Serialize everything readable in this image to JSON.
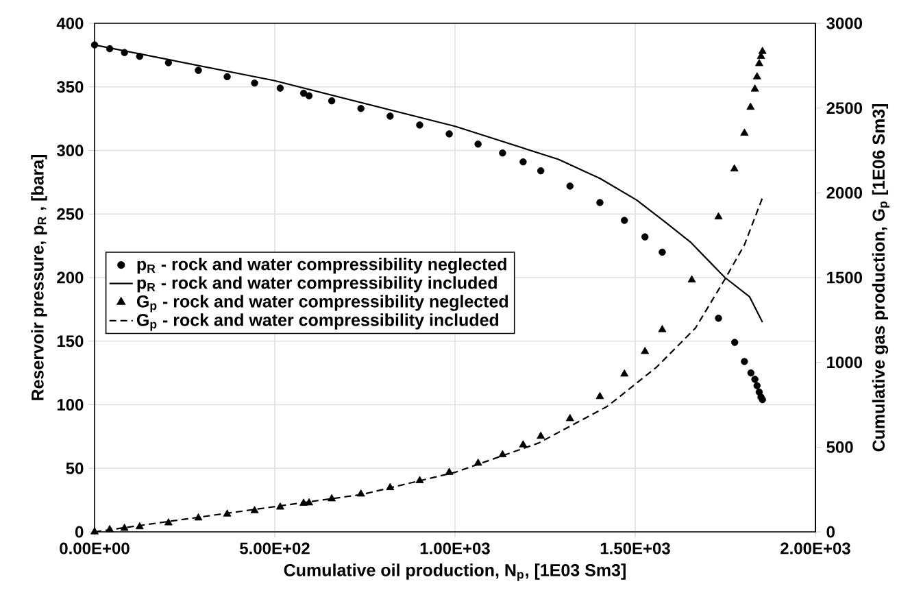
{
  "chart_data": {
    "type": "line",
    "xlabel": "Cumulative oil production, N$_{p}$, [1E03 Sm3]",
    "ylabel": "Reservoir pressure, p$_{R}$ , [bara]",
    "y2label": "Cumulative gas production, G$_{p}$ [1E06 Sm3]",
    "xlim": [
      0,
      2000
    ],
    "xticks": [
      {
        "value": 0,
        "label": "0.00E+00"
      },
      {
        "value": 500,
        "label": "5.00E+02"
      },
      {
        "value": 1000,
        "label": "1.00E+03"
      },
      {
        "value": 1500,
        "label": "1.50E+03"
      },
      {
        "value": 2000,
        "label": "2.00E+03"
      }
    ],
    "ylim": [
      0,
      400
    ],
    "yticks": [
      0,
      50,
      100,
      150,
      200,
      250,
      300,
      350,
      400
    ],
    "y2lim": [
      0,
      3000
    ],
    "y2ticks": [
      0,
      500,
      1000,
      1500,
      2000,
      2500,
      3000
    ],
    "grid": true,
    "legend": "left",
    "series": [
      {
        "name": "p$_{R}$     - rock and water compressibility neglected",
        "type": "scatter",
        "marker": "circle",
        "color": "#000000",
        "x": [
          0,
          42,
          83,
          125,
          205,
          288,
          368,
          444,
          515,
          580,
          595,
          658,
          739,
          820,
          902,
          984,
          1064,
          1132,
          1189,
          1238,
          1319,
          1402,
          1470,
          1527,
          1575,
          1731,
          1776,
          1803,
          1821,
          1832,
          1838,
          1844,
          1849,
          1853
        ],
        "values": [
          383,
          380,
          377,
          374,
          369,
          363,
          358,
          353,
          349,
          345,
          343,
          339,
          333,
          327,
          320,
          313,
          305,
          298,
          291,
          284,
          272,
          259,
          245,
          232,
          220,
          168,
          149,
          134,
          125,
          120,
          115,
          110,
          106,
          104
        ]
      },
      {
        "name": "p$_{R}$     - rock and water compressibility included",
        "line_style": "solid",
        "color": "#000000",
        "x": [
          0,
          498,
          1000,
          1287,
          1402,
          1504,
          1586,
          1653,
          1749,
          1817,
          1853
        ],
        "values": [
          383,
          355,
          319,
          293,
          278,
          261,
          243,
          228,
          200,
          185,
          165
        ]
      },
      {
        "name": "G$_{p}$     - rock and water compressibility neglected",
        "type": "scatter",
        "marker": "triangle",
        "axis": "y2",
        "color": "#000000",
        "x": [
          0,
          42,
          83,
          125,
          205,
          288,
          368,
          444,
          515,
          580,
          595,
          658,
          739,
          820,
          902,
          984,
          1064,
          1132,
          1189,
          1238,
          1319,
          1402,
          1470,
          1527,
          1575,
          1657,
          1731,
          1775,
          1803,
          1820,
          1832,
          1838,
          1844,
          1849,
          1853
        ],
        "values": [
          0,
          13,
          21,
          30,
          53,
          82,
          105,
          125,
          146,
          169,
          171,
          195,
          223,
          261,
          302,
          351,
          405,
          455,
          513,
          564,
          668,
          798,
          931,
          1064,
          1193,
          1486,
          1858,
          2141,
          2352,
          2505,
          2612,
          2684,
          2762,
          2805,
          2834
        ]
      },
      {
        "name": "G$_{p}$     - rock and water compressibility included",
        "line_style": "dashed",
        "axis": "y2",
        "color": "#000000",
        "x": [
          0,
          335,
          743,
          1000,
          1232,
          1423,
          1559,
          1667,
          1749,
          1803,
          1855
        ],
        "values": [
          0,
          100,
          221,
          351,
          524,
          741,
          971,
          1202,
          1491,
          1693,
          1982
        ]
      }
    ]
  }
}
